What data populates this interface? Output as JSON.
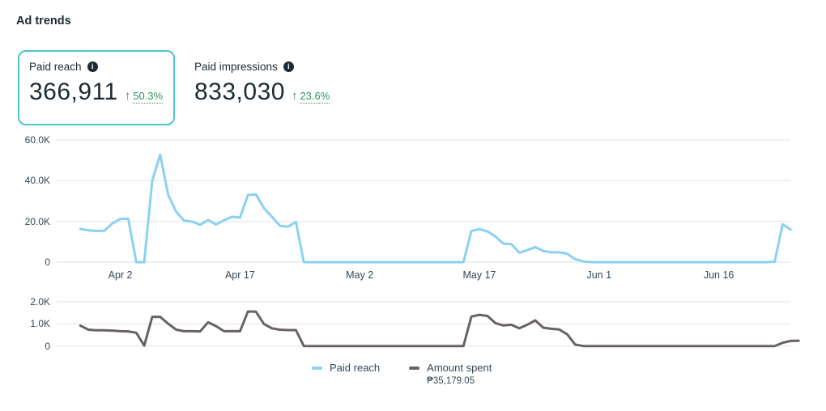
{
  "title": "Ad trends",
  "metric_cards": [
    {
      "label": "Paid reach",
      "value": "366,911",
      "change_arrow": "↑",
      "change": "50.3%",
      "selected": true
    },
    {
      "label": "Paid impressions",
      "value": "833,030",
      "change_arrow": "↑",
      "change": "23.6%",
      "selected": false
    }
  ],
  "colors": {
    "selected_card_border": "#4fc4cc",
    "positive_change_green": "#339066",
    "paid_reach_line": "#8ad1f3",
    "amount_spent_line": "#696361",
    "gridline": "#e5e7e9",
    "axis_text": "#344854",
    "heading_text": "#1c2b33"
  },
  "legend": {
    "items": [
      {
        "label": "Paid reach",
        "swatch_color": "#8ad1f3",
        "total": ""
      },
      {
        "label": "Amount spent",
        "swatch_color": "#696361",
        "total": "₱35,179.05"
      }
    ]
  },
  "chart_data": [
    {
      "type": "line",
      "name": "Paid reach",
      "color": "#8ad1f3",
      "unit": "thousands",
      "ylim": [
        0,
        60
      ],
      "grid": true,
      "y_ticks": [
        {
          "label": "60.0K",
          "value": 60
        },
        {
          "label": "40.0K",
          "value": 40
        },
        {
          "label": "20.0K",
          "value": 20
        },
        {
          "label": "0",
          "value": 0
        }
      ],
      "x_ticks": [
        {
          "label": "Apr 2",
          "index": 5
        },
        {
          "label": "Apr 17",
          "index": 20
        },
        {
          "label": "May 2",
          "index": 35
        },
        {
          "label": "May 17",
          "index": 50
        },
        {
          "label": "Jun 1",
          "index": 65
        },
        {
          "label": "Jun 16",
          "index": 80
        }
      ],
      "dates": [
        "Mar 28",
        "Mar 29",
        "Mar 30",
        "Mar 31",
        "Apr 1",
        "Apr 2",
        "Apr 3",
        "Apr 4",
        "Apr 5",
        "Apr 6",
        "Apr 7",
        "Apr 8",
        "Apr 9",
        "Apr 10",
        "Apr 11",
        "Apr 12",
        "Apr 13",
        "Apr 14",
        "Apr 15",
        "Apr 16",
        "Apr 17",
        "Apr 18",
        "Apr 19",
        "Apr 20",
        "Apr 21",
        "Apr 22",
        "Apr 23",
        "Apr 24",
        "Apr 25",
        "Apr 26",
        "Apr 27",
        "Apr 28",
        "Apr 29",
        "Apr 30",
        "May 1",
        "May 2",
        "May 3",
        "May 4",
        "May 5",
        "May 6",
        "May 7",
        "May 8",
        "May 9",
        "May 10",
        "May 11",
        "May 12",
        "May 13",
        "May 14",
        "May 15",
        "May 16",
        "May 17",
        "May 18",
        "May 19",
        "May 20",
        "May 21",
        "May 22",
        "May 23",
        "May 24",
        "May 25",
        "May 26",
        "May 27",
        "May 28",
        "May 29",
        "May 30",
        "May 31",
        "Jun 1",
        "Jun 2",
        "Jun 3",
        "Jun 4",
        "Jun 5",
        "Jun 6",
        "Jun 7",
        "Jun 8",
        "Jun 9",
        "Jun 10",
        "Jun 11",
        "Jun 12",
        "Jun 13",
        "Jun 14",
        "Jun 15",
        "Jun 16",
        "Jun 17",
        "Jun 18",
        "Jun 19",
        "Jun 20",
        "Jun 21",
        "Jun 22",
        "Jun 23",
        "Jun 24",
        "Jun 25"
      ],
      "values": [
        16.3,
        15.6,
        15.3,
        15.4,
        19.0,
        21.2,
        21.3,
        0,
        0,
        40.0,
        52.8,
        33.0,
        24.8,
        20.4,
        19.9,
        18.3,
        20.7,
        18.5,
        20.6,
        22.3,
        21.9,
        33.0,
        33.2,
        26.5,
        22.3,
        17.9,
        17.4,
        19.7,
        0,
        0,
        0,
        0,
        0,
        0,
        0,
        0,
        0,
        0,
        0,
        0,
        0,
        0,
        0,
        0,
        0,
        0,
        0,
        0,
        0,
        15.3,
        16.2,
        15.1,
        12.6,
        9.1,
        8.9,
        4.6,
        5.9,
        7.4,
        5.5,
        4.8,
        4.8,
        4.1,
        1.5,
        0.3,
        0,
        0,
        0,
        0,
        0,
        0,
        0,
        0,
        0,
        0,
        0,
        0,
        0,
        0,
        0,
        0,
        0,
        0,
        0,
        0,
        0,
        0,
        0,
        0.2,
        18.6,
        16.0
      ]
    },
    {
      "type": "line",
      "name": "Amount spent",
      "color": "#696361",
      "unit": "thousands_php",
      "ylim": [
        0,
        2
      ],
      "grid": true,
      "y_ticks": [
        {
          "label": "2.0K",
          "value": 2
        },
        {
          "label": "1.0K",
          "value": 1
        },
        {
          "label": "0",
          "value": 0
        }
      ],
      "x_ticks": [],
      "total": "₱35,179.05",
      "dates": [
        "Mar 28",
        "Mar 29",
        "Mar 30",
        "Mar 31",
        "Apr 1",
        "Apr 2",
        "Apr 3",
        "Apr 4",
        "Apr 5",
        "Apr 6",
        "Apr 7",
        "Apr 8",
        "Apr 9",
        "Apr 10",
        "Apr 11",
        "Apr 12",
        "Apr 13",
        "Apr 14",
        "Apr 15",
        "Apr 16",
        "Apr 17",
        "Apr 18",
        "Apr 19",
        "Apr 20",
        "Apr 21",
        "Apr 22",
        "Apr 23",
        "Apr 24",
        "Apr 25",
        "Apr 26",
        "Apr 27",
        "Apr 28",
        "Apr 29",
        "Apr 30",
        "May 1",
        "May 2",
        "May 3",
        "May 4",
        "May 5",
        "May 6",
        "May 7",
        "May 8",
        "May 9",
        "May 10",
        "May 11",
        "May 12",
        "May 13",
        "May 14",
        "May 15",
        "May 16",
        "May 17",
        "May 18",
        "May 19",
        "May 20",
        "May 21",
        "May 22",
        "May 23",
        "May 24",
        "May 25",
        "May 26",
        "May 27",
        "May 28",
        "May 29",
        "May 30",
        "May 31",
        "Jun 1",
        "Jun 2",
        "Jun 3",
        "Jun 4",
        "Jun 5",
        "Jun 6",
        "Jun 7",
        "Jun 8",
        "Jun 9",
        "Jun 10",
        "Jun 11",
        "Jun 12",
        "Jun 13",
        "Jun 14",
        "Jun 15",
        "Jun 16",
        "Jun 17",
        "Jun 18",
        "Jun 19",
        "Jun 20",
        "Jun 21",
        "Jun 22",
        "Jun 23",
        "Jun 24",
        "Jun 25"
      ],
      "values": [
        0.92,
        0.74,
        0.71,
        0.71,
        0.7,
        0.67,
        0.66,
        0.6,
        0.02,
        1.32,
        1.32,
        1.01,
        0.74,
        0.67,
        0.67,
        0.66,
        1.07,
        0.9,
        0.67,
        0.67,
        0.67,
        1.56,
        1.55,
        1.0,
        0.8,
        0.74,
        0.72,
        0.72,
        0,
        0,
        0,
        0,
        0,
        0,
        0,
        0,
        0,
        0,
        0,
        0,
        0,
        0,
        0,
        0,
        0,
        0,
        0,
        0,
        0,
        1.33,
        1.41,
        1.36,
        1.04,
        0.93,
        0.96,
        0.8,
        0.96,
        1.16,
        0.83,
        0.78,
        0.75,
        0.53,
        0.07,
        0,
        0,
        0,
        0,
        0,
        0,
        0,
        0,
        0,
        0,
        0,
        0,
        0,
        0,
        0,
        0,
        0,
        0,
        0,
        0,
        0,
        0,
        0,
        0,
        0,
        0.15,
        0.23,
        0.24
      ]
    }
  ]
}
